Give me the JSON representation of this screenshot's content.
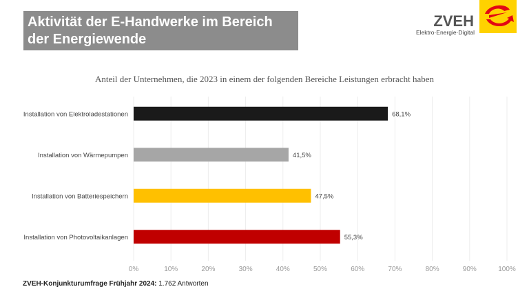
{
  "header": {
    "title_line1": "Aktivität der E-Handwerke im Bereich",
    "title_line2": "der Energiewende"
  },
  "logo": {
    "name": "ZVEH",
    "tagline": "Elektro·Energie·Digital",
    "color": "#ffd200",
    "mark_color": "#e30613"
  },
  "chart_data": {
    "type": "bar",
    "orientation": "horizontal",
    "title": "Anteil der Unternehmen, die 2023 in einem der folgenden Bereiche Leistungen erbracht haben",
    "categories": [
      "Installation von Elektroladestationen",
      "Installation von Wärmepumpen",
      "Installation von Batteriespeichern",
      "Installation von Photovoltaikanlagen"
    ],
    "values": [
      68.1,
      41.5,
      47.5,
      55.3
    ],
    "value_labels": [
      "68,1%",
      "41,5%",
      "47,5%",
      "55,3%"
    ],
    "colors": [
      "#1a1a1a",
      "#a6a6a6",
      "#ffc000",
      "#c00000"
    ],
    "xlim": [
      0,
      100
    ],
    "xticks": [
      "0%",
      "10%",
      "20%",
      "30%",
      "40%",
      "50%",
      "60%",
      "70%",
      "80%",
      "90%",
      "100%"
    ],
    "grid": true
  },
  "footer": {
    "source_bold": "ZVEH-Konjunkturumfrage Frühjahr 2024:",
    "source_rest": " 1.762 Antworten"
  }
}
